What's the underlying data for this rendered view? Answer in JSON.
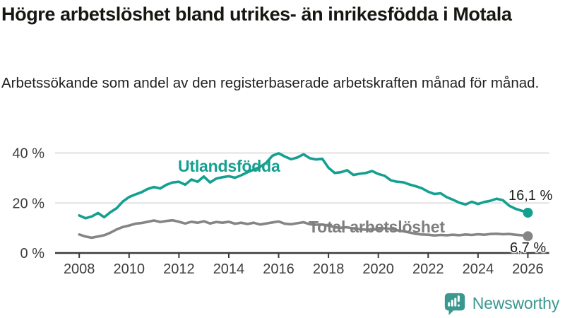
{
  "header": {
    "title": "Högre arbetslöshet bland utrikes- än inrikesfödda i Motala",
    "subtitle": "Arbetssökande som andel av den registerbaserade arbetskraften månad för månad."
  },
  "colors": {
    "foreign_born_line": "#14a090",
    "total_line": "#858585",
    "total_label_text": "#7e7e7e",
    "grid": "#e1e1e1",
    "axis": "#3a3a3a",
    "axis_text": "#3d3d3d",
    "logo_teal": "#3a988f"
  },
  "chart_data": {
    "type": "line",
    "title": "Högre arbetslöshet bland utrikes- än inrikesfödda i Motala",
    "subtitle": "Arbetssökande som andel av den registerbaserade arbetskraften månad för månad.",
    "x_unit": "decimal_year",
    "xlim": [
      2008,
      2026
    ],
    "ylim": [
      0,
      44
    ],
    "grid": "horizontal",
    "y_ticks": [
      {
        "value": 0,
        "label": "0 %"
      },
      {
        "value": 20,
        "label": "20 %"
      },
      {
        "value": 40,
        "label": "40 %"
      }
    ],
    "x_ticks": [
      2008,
      2010,
      2012,
      2014,
      2016,
      2018,
      2020,
      2022,
      2024,
      2026
    ],
    "series": [
      {
        "name": "Utlandsfödda",
        "color": "#14a090",
        "end_label": "16,1 %",
        "points": [
          [
            2008.0,
            15.0
          ],
          [
            2008.25,
            13.9
          ],
          [
            2008.5,
            14.6
          ],
          [
            2008.75,
            16.0
          ],
          [
            2009.0,
            14.3
          ],
          [
            2009.25,
            16.3
          ],
          [
            2009.5,
            17.9
          ],
          [
            2009.75,
            20.6
          ],
          [
            2010.0,
            22.4
          ],
          [
            2010.25,
            23.4
          ],
          [
            2010.5,
            24.3
          ],
          [
            2010.75,
            25.6
          ],
          [
            2011.0,
            26.4
          ],
          [
            2011.25,
            25.8
          ],
          [
            2011.5,
            27.3
          ],
          [
            2011.75,
            28.2
          ],
          [
            2012.0,
            28.5
          ],
          [
            2012.25,
            27.3
          ],
          [
            2012.5,
            29.4
          ],
          [
            2012.75,
            28.5
          ],
          [
            2013.0,
            30.6
          ],
          [
            2013.25,
            28.2
          ],
          [
            2013.5,
            29.8
          ],
          [
            2013.75,
            30.3
          ],
          [
            2014.0,
            30.7
          ],
          [
            2014.25,
            30.1
          ],
          [
            2014.5,
            31.1
          ],
          [
            2014.75,
            32.3
          ],
          [
            2015.0,
            33.3
          ],
          [
            2015.25,
            34.4
          ],
          [
            2015.5,
            36.1
          ],
          [
            2015.75,
            38.9
          ],
          [
            2016.0,
            39.9
          ],
          [
            2016.25,
            38.6
          ],
          [
            2016.5,
            37.5
          ],
          [
            2016.75,
            38.2
          ],
          [
            2017.0,
            39.5
          ],
          [
            2017.25,
            37.9
          ],
          [
            2017.5,
            37.4
          ],
          [
            2017.75,
            37.7
          ],
          [
            2018.0,
            34.1
          ],
          [
            2018.25,
            32.0
          ],
          [
            2018.5,
            32.3
          ],
          [
            2018.75,
            33.1
          ],
          [
            2019.0,
            31.2
          ],
          [
            2019.25,
            31.7
          ],
          [
            2019.5,
            32.0
          ],
          [
            2019.75,
            32.8
          ],
          [
            2020.0,
            31.6
          ],
          [
            2020.25,
            30.9
          ],
          [
            2020.5,
            29.1
          ],
          [
            2020.75,
            28.5
          ],
          [
            2021.0,
            28.3
          ],
          [
            2021.25,
            27.4
          ],
          [
            2021.5,
            26.7
          ],
          [
            2021.75,
            25.9
          ],
          [
            2022.0,
            24.5
          ],
          [
            2022.25,
            23.6
          ],
          [
            2022.5,
            23.9
          ],
          [
            2022.75,
            22.3
          ],
          [
            2023.0,
            21.3
          ],
          [
            2023.25,
            20.1
          ],
          [
            2023.5,
            19.4
          ],
          [
            2023.75,
            20.5
          ],
          [
            2024.0,
            19.6
          ],
          [
            2024.25,
            20.4
          ],
          [
            2024.5,
            20.9
          ],
          [
            2024.75,
            21.7
          ],
          [
            2025.0,
            21.1
          ],
          [
            2025.25,
            18.9
          ],
          [
            2025.5,
            17.7
          ],
          [
            2025.75,
            16.9
          ],
          [
            2026.0,
            16.1
          ]
        ]
      },
      {
        "name": "Total arbetslöshet",
        "color": "#858585",
        "end_label": "6,7 %",
        "points": [
          [
            2008.0,
            7.4
          ],
          [
            2008.25,
            6.6
          ],
          [
            2008.5,
            6.1
          ],
          [
            2008.75,
            6.6
          ],
          [
            2009.0,
            7.1
          ],
          [
            2009.25,
            8.1
          ],
          [
            2009.5,
            9.4
          ],
          [
            2009.75,
            10.4
          ],
          [
            2010.0,
            11.0
          ],
          [
            2010.25,
            11.7
          ],
          [
            2010.5,
            12.0
          ],
          [
            2010.75,
            12.5
          ],
          [
            2011.0,
            13.0
          ],
          [
            2011.25,
            12.4
          ],
          [
            2011.5,
            12.8
          ],
          [
            2011.75,
            13.1
          ],
          [
            2012.0,
            12.5
          ],
          [
            2012.25,
            11.8
          ],
          [
            2012.5,
            12.5
          ],
          [
            2012.75,
            12.1
          ],
          [
            2013.0,
            12.7
          ],
          [
            2013.25,
            11.8
          ],
          [
            2013.5,
            12.4
          ],
          [
            2013.75,
            12.1
          ],
          [
            2014.0,
            12.5
          ],
          [
            2014.25,
            11.7
          ],
          [
            2014.5,
            12.1
          ],
          [
            2014.75,
            11.6
          ],
          [
            2015.0,
            12.1
          ],
          [
            2015.25,
            11.4
          ],
          [
            2015.5,
            11.8
          ],
          [
            2015.75,
            12.2
          ],
          [
            2016.0,
            12.6
          ],
          [
            2016.25,
            11.7
          ],
          [
            2016.5,
            11.5
          ],
          [
            2016.75,
            11.9
          ],
          [
            2017.0,
            12.3
          ],
          [
            2017.25,
            11.5
          ],
          [
            2017.5,
            11.3
          ],
          [
            2017.75,
            11.4
          ],
          [
            2018.0,
            10.9
          ],
          [
            2018.25,
            10.3
          ],
          [
            2018.5,
            10.1
          ],
          [
            2018.75,
            10.3
          ],
          [
            2019.0,
            9.8
          ],
          [
            2019.25,
            9.5
          ],
          [
            2019.5,
            9.3
          ],
          [
            2019.75,
            9.5
          ],
          [
            2020.0,
            9.3
          ],
          [
            2020.25,
            9.9
          ],
          [
            2020.5,
            9.6
          ],
          [
            2020.75,
            9.1
          ],
          [
            2021.0,
            8.7
          ],
          [
            2021.25,
            8.2
          ],
          [
            2021.5,
            7.7
          ],
          [
            2021.75,
            7.4
          ],
          [
            2022.0,
            7.3
          ],
          [
            2022.25,
            7.0
          ],
          [
            2022.5,
            7.2
          ],
          [
            2022.75,
            7.1
          ],
          [
            2023.0,
            7.3
          ],
          [
            2023.25,
            7.1
          ],
          [
            2023.5,
            7.4
          ],
          [
            2023.75,
            7.2
          ],
          [
            2024.0,
            7.5
          ],
          [
            2024.25,
            7.3
          ],
          [
            2024.5,
            7.6
          ],
          [
            2024.75,
            7.7
          ],
          [
            2025.0,
            7.5
          ],
          [
            2025.25,
            7.6
          ],
          [
            2025.5,
            7.3
          ],
          [
            2025.75,
            7.1
          ],
          [
            2026.0,
            6.7
          ]
        ]
      }
    ],
    "legend_position": "inline-labels"
  },
  "annotations": {
    "foreign_born_label": "Utlandsfödda",
    "total_label": "Total arbetslöshet",
    "foreign_born_end_value": "16,1 %",
    "total_end_value": "6,7 %"
  },
  "logo": {
    "text": "Newsworthy",
    "icon": "newsworthy-speech-bubble-bar-chart-icon"
  }
}
